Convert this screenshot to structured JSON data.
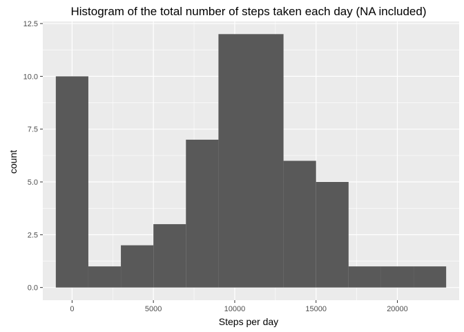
{
  "chart_data": {
    "type": "bar",
    "title": "Histogram of the total number of steps taken each day (NA included)",
    "xlabel": "Steps per day",
    "ylabel": "count",
    "xlim": [
      -1800,
      23800
    ],
    "ylim": [
      -0.6,
      12.6
    ],
    "x_ticks": [
      0,
      5000,
      10000,
      15000,
      20000
    ],
    "x_tick_labels": [
      "0",
      "5000",
      "10000",
      "15000",
      "20000"
    ],
    "y_ticks": [
      0,
      2.5,
      5,
      7.5,
      10,
      12.5
    ],
    "y_tick_labels": [
      "0.0",
      "2.5",
      "5.0",
      "7.5",
      "10.0",
      "12.5"
    ],
    "bins": [
      {
        "start": -1000,
        "end": 1000,
        "count": 10
      },
      {
        "start": 1000,
        "end": 3000,
        "count": 1
      },
      {
        "start": 3000,
        "end": 5000,
        "count": 2
      },
      {
        "start": 5000,
        "end": 7000,
        "count": 3
      },
      {
        "start": 7000,
        "end": 9000,
        "count": 7
      },
      {
        "start": 9000,
        "end": 11000,
        "count": 12
      },
      {
        "start": 11000,
        "end": 13000,
        "count": 12
      },
      {
        "start": 13000,
        "end": 15000,
        "count": 6
      },
      {
        "start": 15000,
        "end": 17000,
        "count": 5
      },
      {
        "start": 17000,
        "end": 19000,
        "count": 1
      },
      {
        "start": 19000,
        "end": 21000,
        "count": 1
      },
      {
        "start": 21000,
        "end": 23000,
        "count": 1
      }
    ],
    "bar_color": "#595959",
    "panel_color": "#ebebeb",
    "grid_color": "#ffffff",
    "grid": true,
    "legend": "none"
  }
}
